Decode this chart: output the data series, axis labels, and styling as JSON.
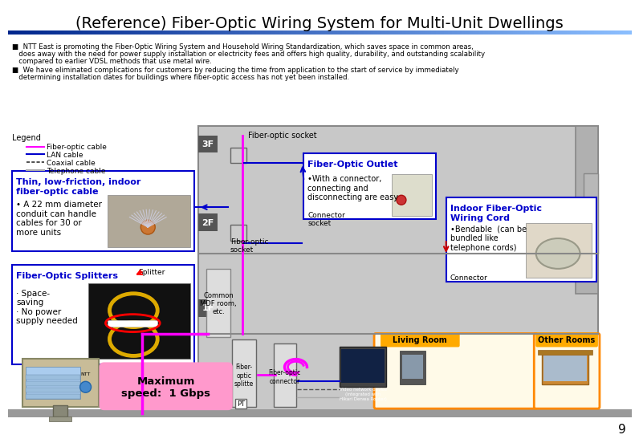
{
  "title": "(Reference) Fiber-Optic Wiring System for Multi-Unit Dwellings",
  "title_fontsize": 14,
  "bullet1_line1": "■  NTT East is promoting the Fiber-Optic Wiring System and Household Wiring Standardization, which saves space in common areas,",
  "bullet1_line2": "   does away with the need for power supply installation or electricity fees and offers high quality, durability, and outstanding scalability",
  "bullet1_line3": "   compared to earlier VDSL methods that use metal wire.",
  "bullet2_line1": "■  We have eliminated complications for customers by reducing the time from application to the start of service by immediately",
  "bullet2_line2": "   determining installation dates for buildings where fiber-optic access has not yet been installed.",
  "page_number": "9",
  "bg_color": "#ffffff",
  "box_border_color": "#0000cc",
  "box_thin_cable_title": "Thin, low-friction, indoor\nfiber-optic cable",
  "box_thin_cable_text": "• A 22 mm diameter\nconduit can handle\ncables for 30 or\nmore units",
  "box_splitter_title": "Fiber-Optic Splitters",
  "box_splitter_text": "· Space-\nsaving\n· No power\nsupply needed",
  "box_outlet_title": "Fiber-Optic Outlet",
  "box_outlet_text": "•With a connector,\nconnecting and\ndisconnecting are easy",
  "box_indoor_title": "Indoor Fiber-Optic\nWiring Cord",
  "box_indoor_text": "•Bendable  (can be\nbundled like\ntelephone cords)",
  "max_speed_text": "Maximum\nspeed:  1 Gbps",
  "max_speed_bg": "#ff99cc",
  "living_room_label": "Living Room",
  "other_rooms_label": "Other Rooms",
  "room_label_bg": "#ffaa00",
  "floor_3f": "3F",
  "floor_2f": "2F",
  "floor_1f": "1F",
  "fiber_optic_socket_label": "Fiber-optic socket",
  "fiber_optic_socket2_label": "Fiber-optic\nsocket",
  "common_mdf_label": "Common\nMDF room,\netc.",
  "fiber_optic_splitter_label": "Fiber-\noptic\nsplitte",
  "fiber_optic_connector_label": "Fiber-optic\nconnector",
  "splitter_arrow_label": "Splitter",
  "connector_label_outlet": "Connector\nsocket",
  "connector_label_indoor": "Connector",
  "pt_label": "PT",
  "video_network_label": "Video network device\n(integrated with\nHikari Denwa Router)",
  "legend_label": "Legend",
  "legend_items": [
    {
      "label": "Fiber-optic cable",
      "color": "#ff00ff",
      "linestyle": "-"
    },
    {
      "label": "LAN cable",
      "color": "#0000cc",
      "linestyle": "-"
    },
    {
      "label": "Coaxial cable",
      "color": "#555555",
      "linestyle": "--"
    },
    {
      "label": "Telephone cable",
      "color": "#aaaaaa",
      "linestyle": "-"
    }
  ]
}
